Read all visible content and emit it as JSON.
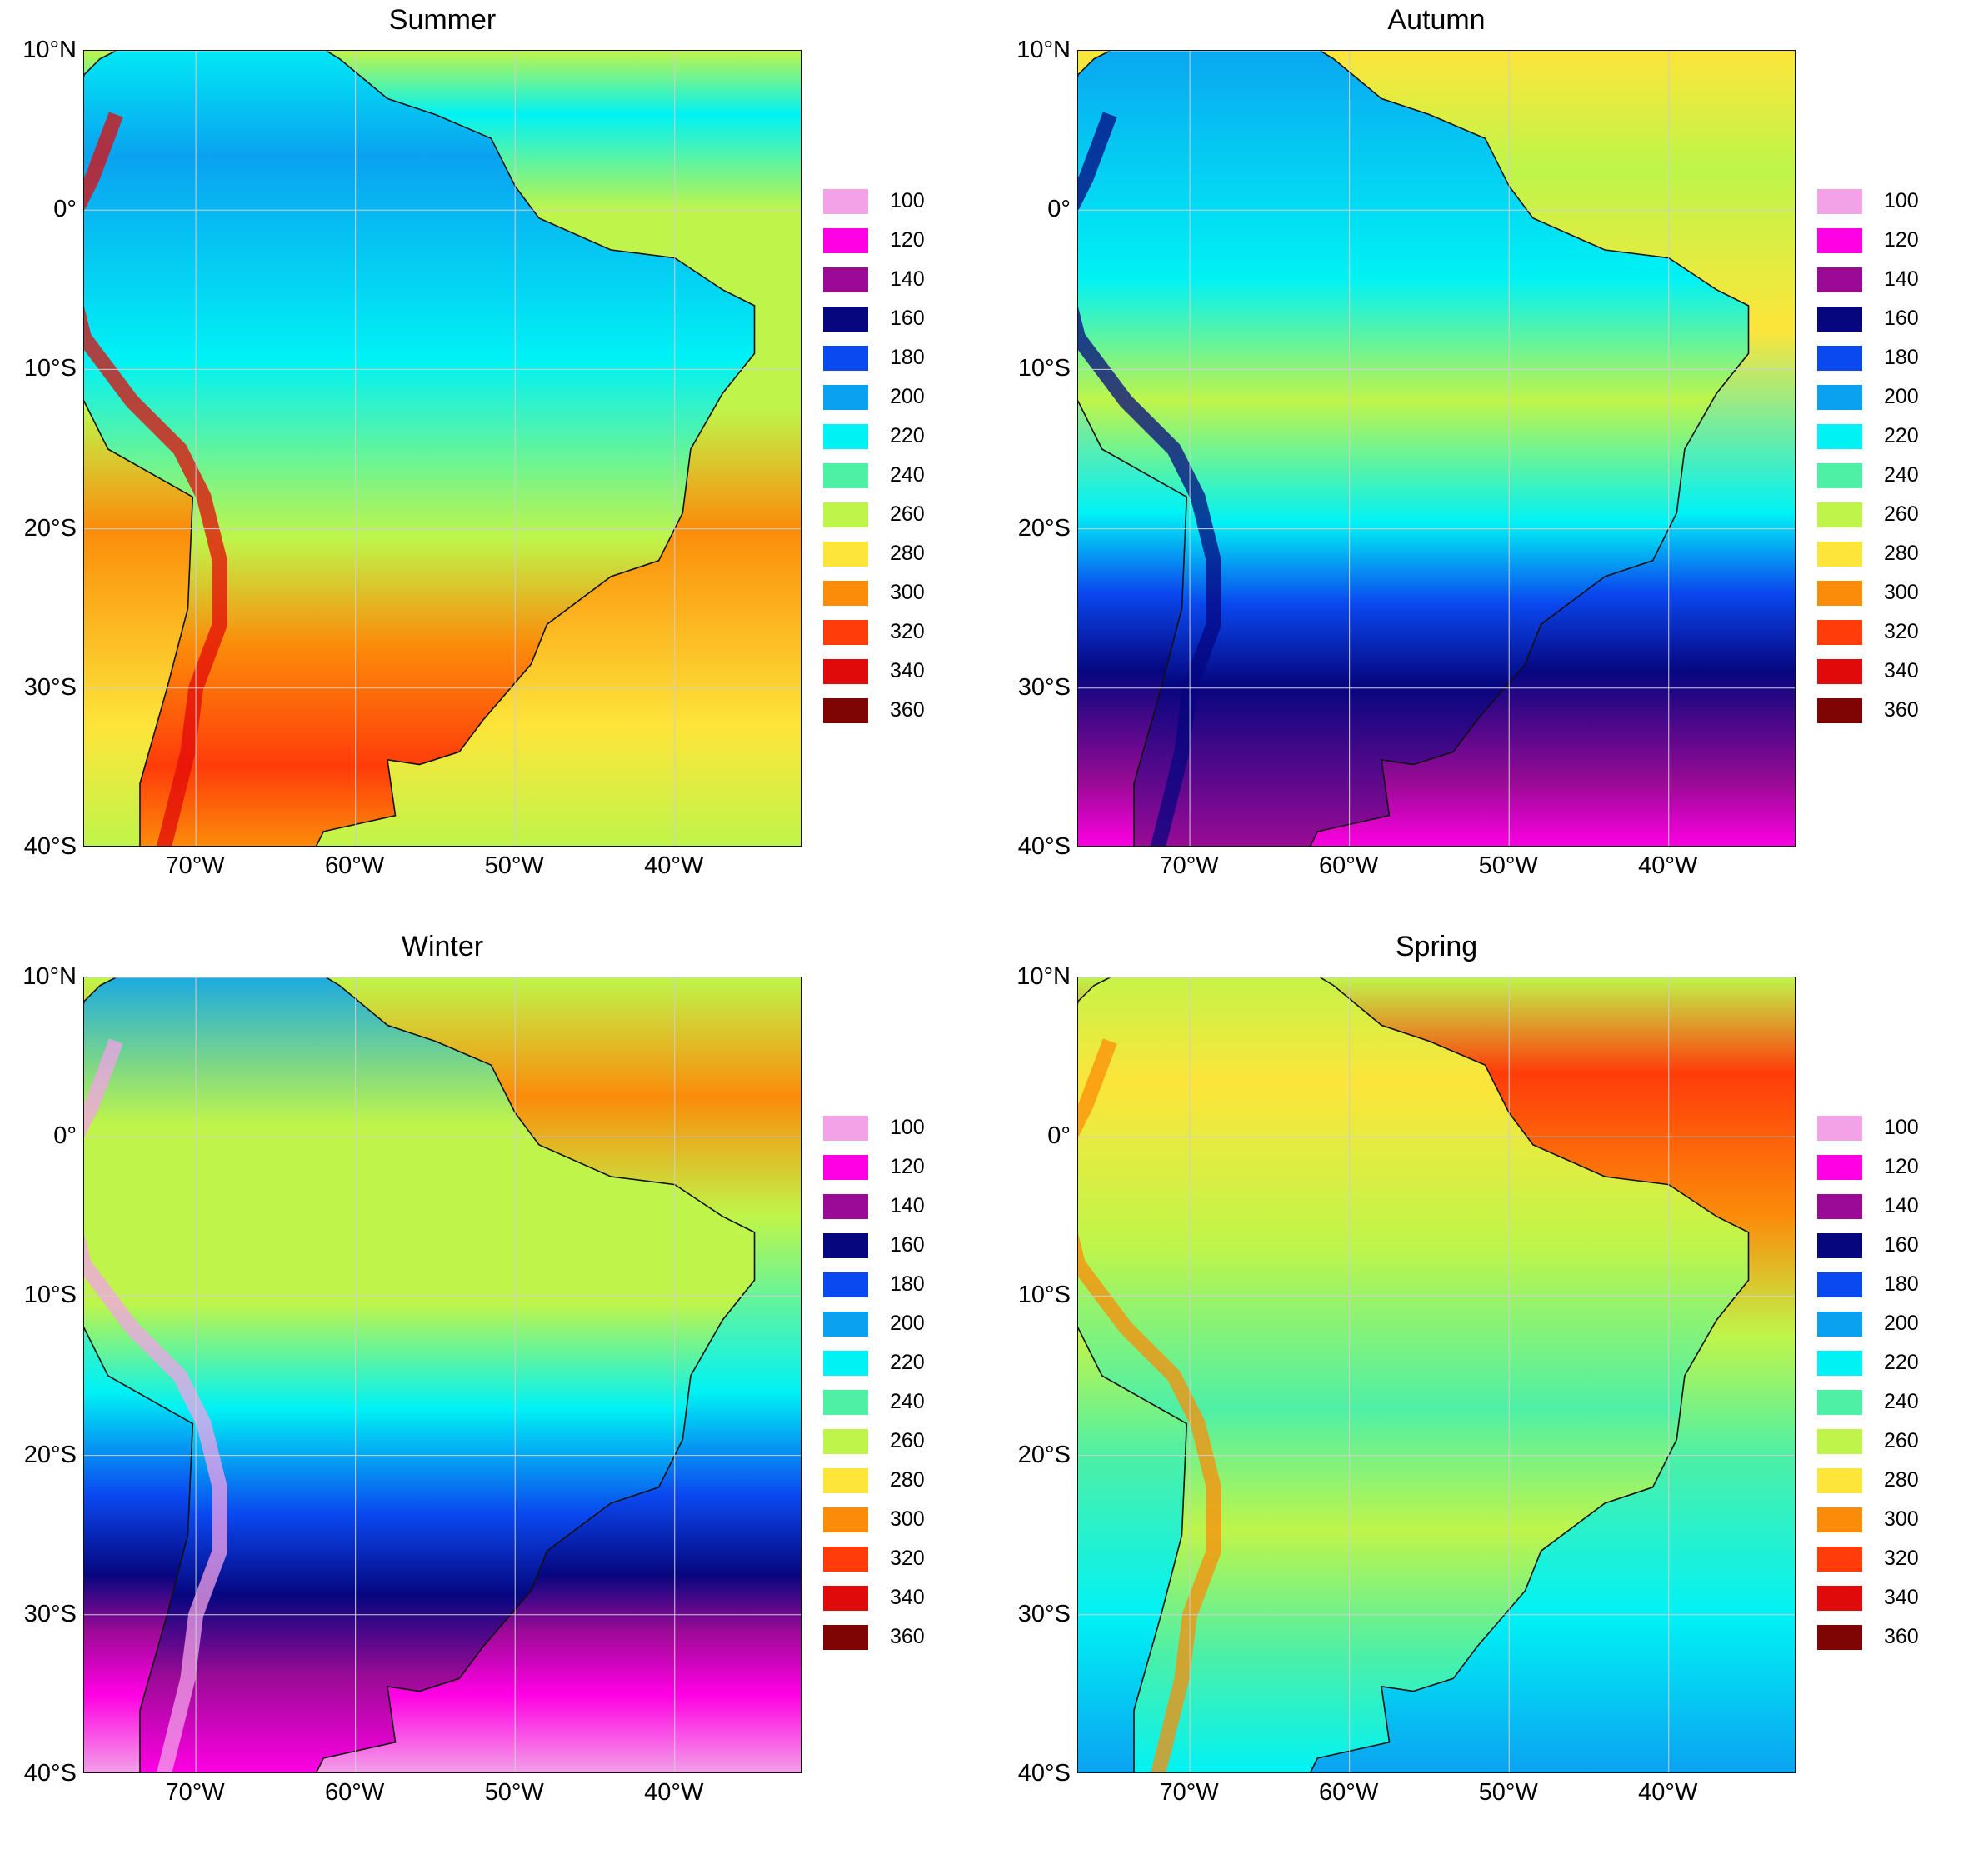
{
  "figure": {
    "panels": [
      {
        "id": "summer",
        "title": "Summer"
      },
      {
        "id": "autumn",
        "title": "Autumn"
      },
      {
        "id": "winter",
        "title": "Winter"
      },
      {
        "id": "spring",
        "title": "Spring"
      }
    ],
    "lat_ticks": [
      "10°N",
      "0°",
      "10°S",
      "20°S",
      "30°S",
      "40°S"
    ],
    "lon_ticks": [
      "70°W",
      "60°W",
      "50°W",
      "40°W"
    ],
    "legend": {
      "values": [
        "100",
        "120",
        "140",
        "160",
        "180",
        "200",
        "220",
        "240",
        "260",
        "280",
        "300",
        "320",
        "340",
        "360"
      ],
      "colors": [
        "#f3a2e8",
        "#ff00e4",
        "#9b0a96",
        "#06067f",
        "#0a48f0",
        "#0aa2f0",
        "#00f2f5",
        "#4ef0a6",
        "#bff54a",
        "#fde53a",
        "#fb8c0a",
        "#ff3c0a",
        "#e10a0a",
        "#7f0505"
      ]
    },
    "map_extent": {
      "lon": [
        -77,
        -32
      ],
      "lat": [
        -40,
        10
      ]
    },
    "seasonal_bands": {
      "summer": {
        "ocean": [
          [
            "#bff54a",
            0
          ],
          [
            "#00f2f5",
            0.08
          ],
          [
            "#bff54a",
            0.2
          ],
          [
            "#bff54a",
            0.45
          ],
          [
            "#fb8c0a",
            0.6
          ],
          [
            "#fde53a",
            0.85
          ],
          [
            "#bff54a",
            1
          ]
        ],
        "land": [
          [
            "#00f2f5",
            0
          ],
          [
            "#0aa2f0",
            0.15
          ],
          [
            "#00f2f5",
            0.4
          ],
          [
            "#bff54a",
            0.62
          ],
          [
            "#fb8c0a",
            0.75
          ],
          [
            "#ff3c0a",
            0.9
          ],
          [
            "#fb8c0a",
            1
          ]
        ],
        "andes": "#e10a0a"
      },
      "autumn": {
        "ocean": [
          [
            "#fde53a",
            0
          ],
          [
            "#bff54a",
            0.15
          ],
          [
            "#fde53a",
            0.35
          ],
          [
            "#00f2f5",
            0.58
          ],
          [
            "#0a48f0",
            0.68
          ],
          [
            "#06067f",
            0.78
          ],
          [
            "#9b0a96",
            0.92
          ],
          [
            "#ff00e4",
            1
          ]
        ],
        "land": [
          [
            "#0aa2f0",
            0
          ],
          [
            "#00f2f5",
            0.3
          ],
          [
            "#bff54a",
            0.45
          ],
          [
            "#00f2f5",
            0.6
          ],
          [
            "#0a48f0",
            0.7
          ],
          [
            "#06067f",
            0.8
          ],
          [
            "#9b0a96",
            1
          ]
        ],
        "andes": "#06067f"
      },
      "winter": {
        "ocean": [
          [
            "#bff54a",
            0
          ],
          [
            "#fb8c0a",
            0.15
          ],
          [
            "#bff54a",
            0.3
          ],
          [
            "#00f2f5",
            0.52
          ],
          [
            "#0a48f0",
            0.65
          ],
          [
            "#06067f",
            0.75
          ],
          [
            "#9b0a96",
            0.82
          ],
          [
            "#ff00e4",
            0.9
          ],
          [
            "#f3a2e8",
            1
          ]
        ],
        "land": [
          [
            "#0aa2f0",
            0
          ],
          [
            "#bff54a",
            0.2
          ],
          [
            "#bff54a",
            0.42
          ],
          [
            "#00f2f5",
            0.55
          ],
          [
            "#0a48f0",
            0.68
          ],
          [
            "#06067f",
            0.78
          ],
          [
            "#9b0a96",
            0.88
          ],
          [
            "#ff00e4",
            1
          ]
        ],
        "andes": "#f3a2e8"
      },
      "spring": {
        "ocean": [
          [
            "#bff54a",
            0
          ],
          [
            "#ff3c0a",
            0.12
          ],
          [
            "#fb8c0a",
            0.3
          ],
          [
            "#bff54a",
            0.45
          ],
          [
            "#4ef0a6",
            0.6
          ],
          [
            "#00f2f5",
            0.8
          ],
          [
            "#0aa2f0",
            1
          ]
        ],
        "land": [
          [
            "#bff54a",
            0
          ],
          [
            "#fde53a",
            0.15
          ],
          [
            "#bff54a",
            0.35
          ],
          [
            "#4ef0a6",
            0.55
          ],
          [
            "#bff54a",
            0.7
          ],
          [
            "#4ef0a6",
            0.85
          ],
          [
            "#00f2f5",
            1
          ]
        ],
        "andes": "#fb8c0a"
      }
    }
  }
}
